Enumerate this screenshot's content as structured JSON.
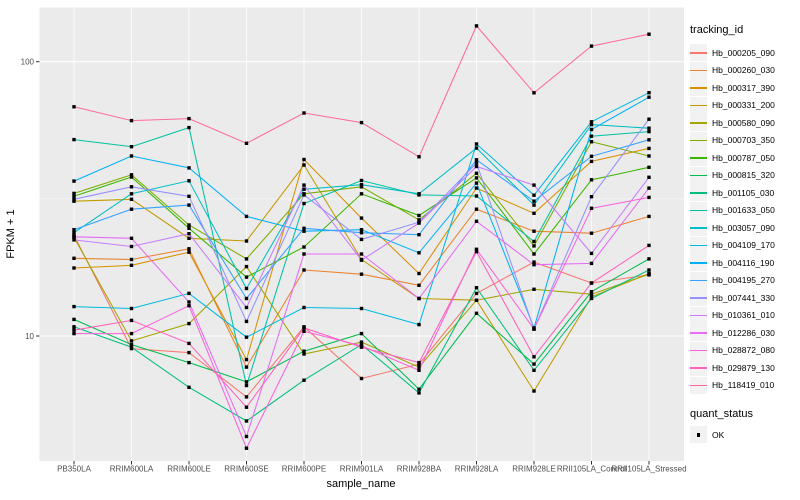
{
  "chart_data": {
    "type": "line",
    "title": "",
    "xlabel": "sample_name",
    "ylabel": "FPKM + 1",
    "yscale": "log10",
    "yticks": [
      100,
      10
    ],
    "ylim": [
      3.5,
      157
    ],
    "grid": true,
    "legend_position": "right",
    "legend_title": "tracking_id",
    "quant_legend": {
      "title": "quant_status",
      "items": [
        {
          "label": "OK"
        }
      ]
    },
    "categories": [
      "PB350LA",
      "RRIM600LA",
      "RRIM600LE",
      "RRIM600SE",
      "RRIM600PE",
      "RRIM901LA",
      "RRIM928BA",
      "RRIM928LA",
      "RRIM928LE",
      "RRII105LA_Control",
      "RRII105LA_Stressed"
    ],
    "series": [
      {
        "name": "Hb_000205_090",
        "color": "#F8766D",
        "values": [
          23.3,
          9.0,
          8.7,
          6.0,
          10.8,
          7.0,
          7.9,
          14.3,
          18.6,
          15.6,
          16.7
        ]
      },
      {
        "name": "Hb_000260_030",
        "color": "#EA8331",
        "values": [
          19.2,
          19.0,
          20.8,
          7.7,
          17.4,
          16.8,
          15.3,
          29.0,
          24.1,
          23.7,
          27.3
        ]
      },
      {
        "name": "Hb_000317_390",
        "color": "#D89000",
        "values": [
          17.7,
          18.1,
          20.2,
          8.2,
          44.0,
          26.9,
          16.9,
          34.6,
          28.0,
          43.3,
          48.3
        ]
      },
      {
        "name": "Hb_000331_200",
        "color": "#C09B00",
        "values": [
          31.0,
          31.5,
          22.7,
          22.2,
          42.0,
          19.0,
          13.7,
          13.5,
          6.3,
          13.9,
          16.9
        ]
      },
      {
        "name": "Hb_000580_090",
        "color": "#A3A500",
        "values": [
          22.9,
          9.6,
          11.1,
          17.9,
          8.6,
          9.5,
          7.7,
          13.5,
          14.8,
          14.2,
          16.8
        ]
      },
      {
        "name": "Hb_000703_350",
        "color": "#7CAE00",
        "values": [
          33.1,
          38.7,
          25.4,
          19.1,
          33.0,
          35.0,
          26.5,
          39.2,
          21.3,
          51.1,
          45.3
        ]
      },
      {
        "name": "Hb_000787_050",
        "color": "#39B600",
        "values": [
          32.3,
          38.0,
          24.7,
          16.4,
          21.1,
          33.0,
          27.5,
          37.7,
          19.9,
          37.1,
          41.2
        ]
      },
      {
        "name": "Hb_000815_320",
        "color": "#00BB4E",
        "values": [
          11.5,
          9.3,
          8.0,
          6.8,
          8.8,
          10.2,
          6.4,
          12.1,
          7.9,
          14.5,
          19.1
        ]
      },
      {
        "name": "Hb_001105_030",
        "color": "#00BF7D",
        "values": [
          10.8,
          9.1,
          6.5,
          4.9,
          6.9,
          9.3,
          6.2,
          15.0,
          7.5,
          13.7,
          17.4
        ]
      },
      {
        "name": "Hb_001633_050",
        "color": "#00C1A3",
        "values": [
          52.0,
          49.0,
          57.5,
          6.6,
          30.4,
          36.9,
          32.7,
          32.4,
          22.1,
          53.5,
          55.6
        ]
      },
      {
        "name": "Hb_003057_090",
        "color": "#00BFC4",
        "values": [
          23.8,
          33.0,
          36.8,
          14.9,
          34.3,
          35.6,
          33.0,
          48.4,
          30.0,
          59.0,
          57.2
        ]
      },
      {
        "name": "Hb_004109_170",
        "color": "#00BAE0",
        "values": [
          12.8,
          12.6,
          14.3,
          9.9,
          12.7,
          12.6,
          11.0,
          50.1,
          32.6,
          60.4,
          77.1
        ]
      },
      {
        "name": "Hb_004116_190",
        "color": "#00B0F6",
        "values": [
          36.7,
          45.3,
          41.0,
          27.3,
          24.1,
          24.4,
          20.1,
          36.1,
          10.7,
          56.6,
          74.2
        ]
      },
      {
        "name": "Hb_004195_270",
        "color": "#35A2FF",
        "values": [
          24.4,
          29.0,
          30.0,
          13.7,
          24.7,
          23.8,
          23.4,
          43.9,
          31.0,
          45.2,
          51.9
        ]
      },
      {
        "name": "Hb_007441_330",
        "color": "#9590FF",
        "values": [
          31.5,
          35.0,
          32.3,
          11.3,
          32.7,
          22.5,
          26.0,
          42.7,
          10.6,
          32.2,
          61.7
        ]
      },
      {
        "name": "Hb_010361_010",
        "color": "#C77CFF",
        "values": [
          22.4,
          21.2,
          23.6,
          12.7,
          35.5,
          18.9,
          25.8,
          41.5,
          35.5,
          20.0,
          37.9
        ]
      },
      {
        "name": "Hb_012286_030",
        "color": "#E76BF3",
        "values": [
          23.0,
          22.7,
          13.3,
          4.3,
          19.9,
          19.9,
          13.7,
          26.2,
          18.2,
          18.4,
          34.6
        ]
      },
      {
        "name": "Hb_028872_080",
        "color": "#FA62DB",
        "values": [
          10.2,
          10.2,
          12.9,
          3.9,
          10.4,
          9.2,
          7.5,
          20.7,
          10.6,
          29.2,
          32.0
        ]
      },
      {
        "name": "Hb_029879_130",
        "color": "#FF62BC",
        "values": [
          10.5,
          11.4,
          9.4,
          5.5,
          10.7,
          9.1,
          8.0,
          20.3,
          8.4,
          15.6,
          21.4
        ]
      },
      {
        "name": "Hb_118419_010",
        "color": "#FF6A98",
        "values": [
          68.5,
          61.0,
          62.0,
          50.4,
          65.0,
          60.0,
          45.0,
          135.0,
          77.0,
          114.0,
          126.0
        ]
      }
    ]
  },
  "colors": {
    "panel_bg": "#EBEBEB",
    "grid": "#FFFFFF",
    "tick_label": "#4D4D4D",
    "axis_title": "#000000",
    "legend_key_bg": "#F2F2F2",
    "point": "#000000"
  }
}
